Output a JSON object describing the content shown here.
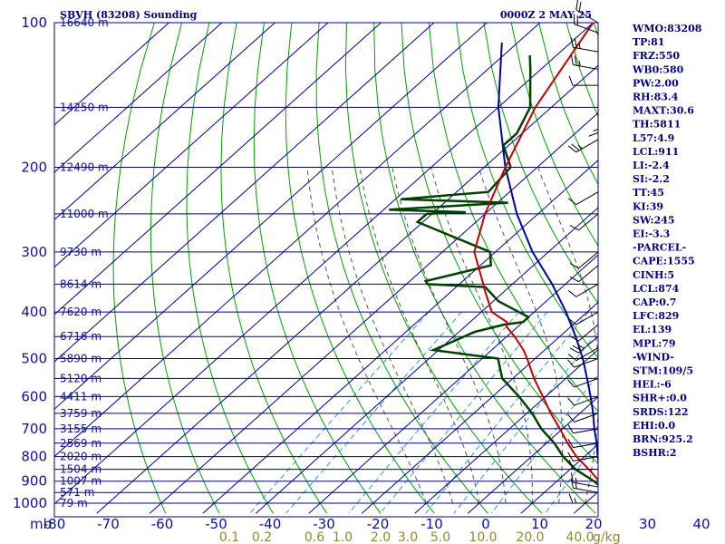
{
  "header": {
    "station": "SBVH (83208) Sounding",
    "time": "0000Z  2 MAY 25"
  },
  "axis": {
    "pressure_unit": "mb",
    "mixing_ratio_unit": "g/kg"
  },
  "chart_data": {
    "type": "skew-t sounding",
    "pressure_levels": [
      100,
      200,
      300,
      400,
      500,
      600,
      700,
      800,
      900,
      1000
    ],
    "pressure_labels": [
      "100",
      "200",
      "300",
      "400",
      "500",
      "600",
      "700",
      "800",
      "900",
      "1000"
    ],
    "temperature_ticks": [
      -80,
      -70,
      -60,
      -50,
      -40,
      -30,
      -20,
      -10,
      0,
      10,
      20,
      30,
      40
    ],
    "temperature_labels": [
      "-80",
      "-70",
      "-60",
      "-50",
      "-40",
      "-30",
      "-20",
      "-10",
      "0",
      "10",
      "20",
      "30",
      "40"
    ],
    "mixing_ratio_labels": [
      "0.1",
      "0.2",
      "0.6",
      "1.0",
      "2.0",
      "3.0",
      "5.0",
      "10.0",
      "20.0",
      "40.0"
    ],
    "height_labels": [
      {
        "p": 100,
        "text": "16640 m"
      },
      {
        "p": 150,
        "text": "14250 m"
      },
      {
        "p": 200,
        "text": "12490 m"
      },
      {
        "p": 250,
        "text": "11000 m"
      },
      {
        "p": 300,
        "text": "9730 m"
      },
      {
        "p": 350,
        "text": "8614 m"
      },
      {
        "p": 400,
        "text": "7620 m"
      },
      {
        "p": 450,
        "text": "6716 m"
      },
      {
        "p": 500,
        "text": "5890 m"
      },
      {
        "p": 550,
        "text": "5120 m"
      },
      {
        "p": 600,
        "text": "4411 m"
      },
      {
        "p": 650,
        "text": "3759 m"
      },
      {
        "p": 700,
        "text": "3155 m"
      },
      {
        "p": 750,
        "text": "2569 m"
      },
      {
        "p": 800,
        "text": "2020 m"
      },
      {
        "p": 850,
        "text": "1504 m"
      },
      {
        "p": 900,
        "text": "1007 m"
      },
      {
        "p": 950,
        "text": "571 m"
      },
      {
        "p": 1000,
        "text": "79 m"
      }
    ],
    "temperature": [
      [
        1000,
        25.5
      ],
      [
        925,
        20.5
      ],
      [
        900,
        18
      ],
      [
        850,
        13.5
      ],
      [
        800,
        8.5
      ],
      [
        750,
        4.0
      ],
      [
        700,
        -0.5
      ],
      [
        650,
        -5.5
      ],
      [
        600,
        -10.5
      ],
      [
        550,
        -16.0
      ],
      [
        500,
        -21.5
      ],
      [
        480,
        -24.0
      ],
      [
        450,
        -28.5
      ],
      [
        430,
        -32.0
      ],
      [
        420,
        -33.0
      ],
      [
        400,
        -38.0
      ],
      [
        360,
        -44.0
      ],
      [
        350,
        -45.5
      ],
      [
        300,
        -54.0
      ],
      [
        250,
        -60.0
      ],
      [
        200,
        -66.0
      ],
      [
        150,
        -73.0
      ],
      [
        100,
        -80.0
      ]
    ],
    "dewpoint": [
      [
        1000,
        23.5
      ],
      [
        925,
        19.5
      ],
      [
        900,
        17
      ],
      [
        850,
        11.0
      ],
      [
        800,
        6.0
      ],
      [
        750,
        1.5
      ],
      [
        700,
        -4.0
      ],
      [
        650,
        -9.0
      ],
      [
        600,
        -15.0
      ],
      [
        550,
        -22.0
      ],
      [
        500,
        -27.0
      ],
      [
        480,
        -41.0
      ],
      [
        440,
        -37.0
      ],
      [
        425,
        -33.0
      ],
      [
        420,
        -30.0
      ],
      [
        410,
        -30.0
      ],
      [
        380,
        -39.0
      ],
      [
        355,
        -44.5
      ],
      [
        350,
        -56.0
      ],
      [
        345,
        -57.0
      ],
      [
        320,
        -48.0
      ],
      [
        300,
        -51.0
      ],
      [
        260,
        -71.0
      ],
      [
        250,
        -71.0
      ],
      [
        248,
        -64.0
      ],
      [
        245,
        -79.0
      ],
      [
        237,
        -58.0
      ],
      [
        233,
        -79.0
      ],
      [
        225,
        -64.0
      ],
      [
        200,
        -65.0
      ],
      [
        180,
        -71.0
      ],
      [
        170,
        -71.0
      ],
      [
        150,
        -74.0
      ],
      [
        125,
        -82.0
      ],
      [
        117,
        -85.0
      ]
    ],
    "parcel": [
      [
        1000,
        23.5
      ],
      [
        925,
        20.0
      ],
      [
        900,
        18.5
      ],
      [
        850,
        15.5
      ],
      [
        800,
        12.5
      ],
      [
        750,
        9.5
      ],
      [
        700,
        6.0
      ],
      [
        650,
        2.5
      ],
      [
        600,
        -1.5
      ],
      [
        550,
        -6.0
      ],
      [
        500,
        -11.0
      ],
      [
        450,
        -17.0
      ],
      [
        400,
        -24.0
      ],
      [
        350,
        -32.5
      ],
      [
        300,
        -43.0
      ],
      [
        250,
        -54.0
      ],
      [
        200,
        -66.0
      ],
      [
        150,
        -80.0
      ],
      [
        110,
        -93.0
      ]
    ],
    "wind_barbs": [
      {
        "p": 100,
        "dir": 300,
        "spd": 20
      },
      {
        "p": 105,
        "dir": 290,
        "spd": 20
      },
      {
        "p": 115,
        "dir": 280,
        "spd": 15
      },
      {
        "p": 125,
        "dir": 280,
        "spd": 15
      },
      {
        "p": 135,
        "dir": 270,
        "spd": 10
      },
      {
        "p": 150,
        "dir": 180,
        "spd": 5
      },
      {
        "p": 175,
        "dir": 240,
        "spd": 15
      },
      {
        "p": 225,
        "dir": 240,
        "spd": 10
      },
      {
        "p": 250,
        "dir": 230,
        "spd": 10
      },
      {
        "p": 300,
        "dir": 230,
        "spd": 10
      },
      {
        "p": 320,
        "dir": 230,
        "spd": 10
      },
      {
        "p": 350,
        "dir": 240,
        "spd": 10
      },
      {
        "p": 400,
        "dir": 240,
        "spd": 10
      },
      {
        "p": 425,
        "dir": 230,
        "spd": 10
      },
      {
        "p": 450,
        "dir": 230,
        "spd": 15
      },
      {
        "p": 475,
        "dir": 240,
        "spd": 10
      },
      {
        "p": 500,
        "dir": 250,
        "spd": 10
      },
      {
        "p": 550,
        "dir": 250,
        "spd": 10
      },
      {
        "p": 600,
        "dir": 250,
        "spd": 10
      },
      {
        "p": 650,
        "dir": 250,
        "spd": 10
      },
      {
        "p": 700,
        "dir": 260,
        "spd": 10
      },
      {
        "p": 750,
        "dir": 260,
        "spd": 10
      },
      {
        "p": 800,
        "dir": 260,
        "spd": 10
      },
      {
        "p": 850,
        "dir": 270,
        "spd": 10
      },
      {
        "p": 925,
        "dir": 280,
        "spd": 5
      },
      {
        "p": 950,
        "dir": 280,
        "spd": 5
      },
      {
        "p": 1000,
        "dir": 270,
        "spd": 5
      }
    ],
    "colors": {
      "isobar": "#000080",
      "isotherm": "#0000a0",
      "dry_adiabat": "#00a000",
      "moist_adiabat": "#555555",
      "mixing_ratio": "#3399cc",
      "temperature": "#c00000",
      "dewpoint": "#004000",
      "parcel": "#0000a0",
      "text": "#000080",
      "mixing_ratio_text": "#8a8a30"
    }
  },
  "indices": [
    "WMO:83208",
    "TP:81",
    "FRZ:550",
    "WB0:580",
    "PW:2.00",
    "RH:83.4",
    "MAXT:30.6",
    "TH:5811",
    "L57:4.9",
    "LCL:911",
    "LI:-2.4",
    "SI:-2.2",
    "TT:45",
    "KI:39",
    "SW:245",
    "EI:-3.3",
    "-PARCEL-",
    "CAPE:1555",
    "CINH:5",
    "LCL:874",
    "CAP:0.7",
    "LFC:829",
    "EL:139",
    "MPL:79",
    "-WIND-",
    "STM:109/5",
    "HEL:-6",
    "SHR+:0.0",
    "SRDS:122",
    "EHI:0.0",
    "BRN:925.2",
    "BSHR:2"
  ]
}
